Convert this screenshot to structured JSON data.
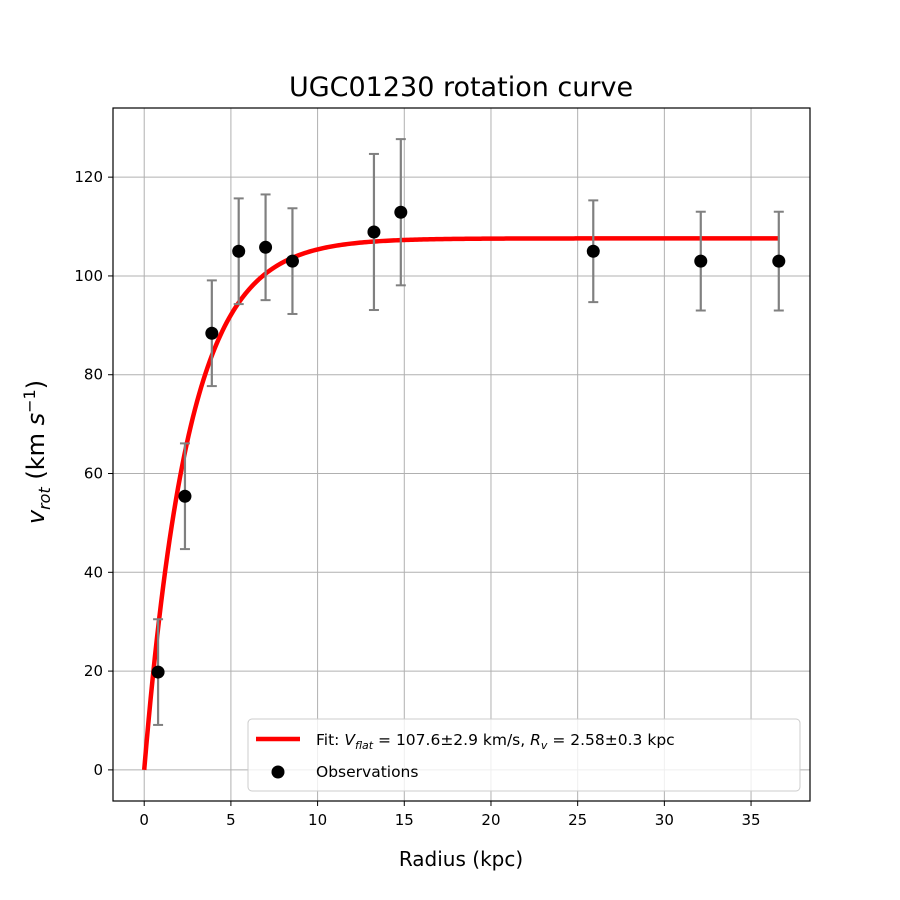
{
  "chart_data": {
    "type": "scatter",
    "title": "UGC01230 rotation curve",
    "xlabel": "Radius (kpc)",
    "ylabel": "v_rot (km s^-1)",
    "xlim": [
      -1.8,
      38.4
    ],
    "ylim": [
      -6.3,
      134
    ],
    "xticks": [
      0,
      5,
      10,
      15,
      20,
      25,
      30,
      35
    ],
    "yticks": [
      0,
      20,
      40,
      60,
      80,
      100,
      120
    ],
    "grid": true,
    "legend_position": "lower-right",
    "observations": {
      "name": "Observations",
      "color": "#000000",
      "error_color": "#808080",
      "points": [
        {
          "x": 0.8,
          "y": 19.8,
          "err": 10.7
        },
        {
          "x": 2.35,
          "y": 55.4,
          "err": 10.7
        },
        {
          "x": 3.9,
          "y": 88.4,
          "err": 10.7
        },
        {
          "x": 5.45,
          "y": 105.0,
          "err": 10.7
        },
        {
          "x": 7.0,
          "y": 105.8,
          "err": 10.7
        },
        {
          "x": 8.55,
          "y": 103.0,
          "err": 10.7
        },
        {
          "x": 13.25,
          "y": 108.9,
          "err": 15.8
        },
        {
          "x": 14.8,
          "y": 112.9,
          "err": 14.8
        },
        {
          "x": 25.9,
          "y": 105.0,
          "err": 10.3
        },
        {
          "x": 32.1,
          "y": 103.0,
          "err": 10.0
        },
        {
          "x": 36.6,
          "y": 103.0,
          "err": 10.0
        }
      ]
    },
    "fit": {
      "label_prefix": "Fit: ",
      "vflat_symbol": "V",
      "vflat_sub": "flat",
      "vflat_text": " = 107.6±2.9 km/s, ",
      "rv_symbol": "R",
      "rv_sub": "v",
      "rv_text": " = 2.58±0.3 kpc",
      "color": "#ff0000",
      "vflat": 107.6,
      "rv": 2.58,
      "x_range": [
        0,
        36.6
      ]
    }
  }
}
